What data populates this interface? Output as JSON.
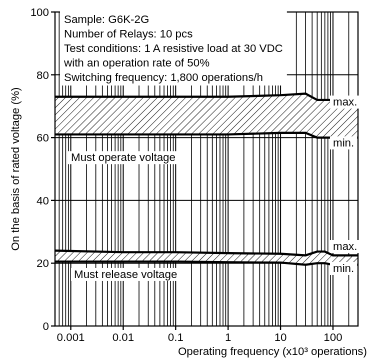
{
  "chart_data": {
    "type": "line",
    "x_scale": "log",
    "xlim": [
      0.0005,
      300
    ],
    "ylim": [
      0,
      100
    ],
    "xticks": [
      0.001,
      0.01,
      0.1,
      1,
      10,
      100
    ],
    "xtick_labels": [
      "0.001",
      "0.01",
      "0.1",
      "1",
      "10",
      "100"
    ],
    "yticks": [
      0,
      20,
      40,
      60,
      80,
      100
    ],
    "ytick_labels": [
      "0",
      "20",
      "40",
      "60",
      "80",
      "100"
    ],
    "xlabel": "Operating frequency (x10³ operations)",
    "ylabel": "On the basis of rated voltage (%)",
    "grid": "vertical log gridlines",
    "conditions": [
      "Sample: G6K-2G",
      "Number of Relays: 10 pcs",
      "Test conditions: 1 A resistive load at 30 VDC",
      "with an operation rate of 50%",
      "Switching frequency: 1,800 operations/h"
    ],
    "bands": [
      {
        "name": "Must operate voltage",
        "x": [
          0.0005,
          0.01,
          0.1,
          1,
          10,
          30,
          50,
          100,
          300
        ],
        "max": [
          73,
          73,
          73,
          73,
          73.5,
          74,
          72,
          72,
          72
        ],
        "min": [
          61,
          61,
          61,
          61,
          61.5,
          61.5,
          60,
          60,
          60
        ]
      },
      {
        "name": "Must release voltage",
        "x": [
          0.0005,
          0.01,
          0.1,
          1,
          10,
          30,
          50,
          70,
          100,
          300
        ],
        "max": [
          24,
          23.5,
          23.5,
          23.2,
          23,
          22.5,
          23.7,
          23.7,
          22.5,
          22.5
        ],
        "min": [
          20.5,
          20.5,
          20.5,
          20.3,
          20.2,
          19.5,
          20,
          20,
          19.5,
          19.5
        ]
      }
    ],
    "annotations": {
      "max_label": "max.",
      "min_label": "min."
    }
  }
}
